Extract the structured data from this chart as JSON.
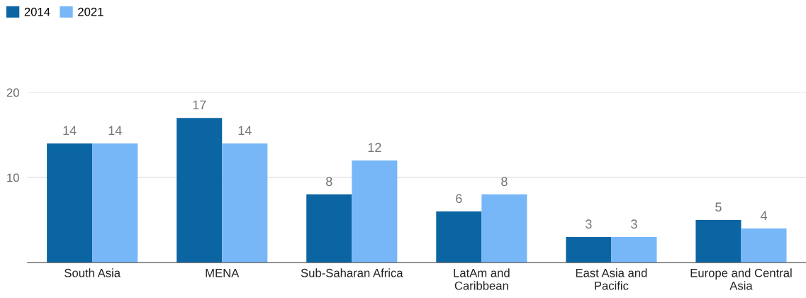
{
  "chart_data": {
    "type": "bar",
    "categories": [
      "South Asia",
      "MENA",
      "Sub-Saharan Africa",
      "LatAm and\nCaribbean",
      "East Asia and\nPacific",
      "Europe and Central\nAsia"
    ],
    "series": [
      {
        "name": "2014",
        "color": "#0b65a3",
        "values": [
          14,
          17,
          8,
          6,
          3,
          5
        ]
      },
      {
        "name": "2021",
        "color": "#77b7f7",
        "values": [
          14,
          14,
          12,
          8,
          3,
          4
        ]
      }
    ],
    "ylim": [
      0,
      20
    ],
    "yticks": [
      {
        "value": 0,
        "label": null
      },
      10,
      20
    ],
    "grid": "y",
    "legend": "top left",
    "data_labels": true
  }
}
